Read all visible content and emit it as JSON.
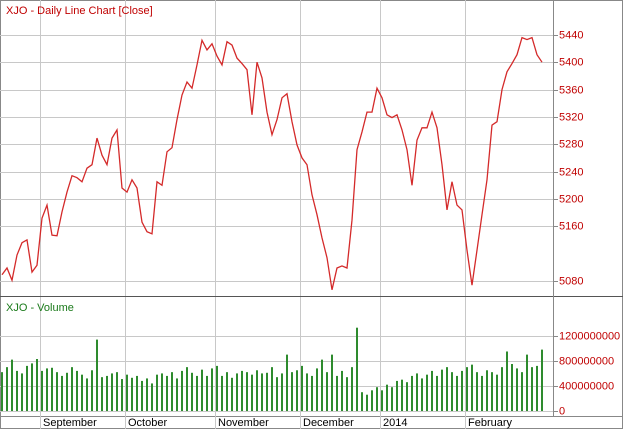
{
  "chart_data": [
    {
      "type": "line",
      "title": "XJO - Daily Line Chart [Close]",
      "color": "#d42a2a",
      "title_color": "#c00000",
      "values": [
        5089,
        5099,
        5081,
        5118,
        5136,
        5140,
        5093,
        5103,
        5172,
        5191,
        5147,
        5146,
        5181,
        5210,
        5234,
        5231,
        5225,
        5245,
        5250,
        5289,
        5264,
        5250,
        5289,
        5301,
        5216,
        5210,
        5228,
        5216,
        5166,
        5152,
        5149,
        5225,
        5220,
        5269,
        5275,
        5316,
        5352,
        5371,
        5362,
        5396,
        5432,
        5418,
        5427,
        5409,
        5396,
        5430,
        5425,
        5406,
        5398,
        5389,
        5323,
        5400,
        5377,
        5327,
        5294,
        5316,
        5348,
        5354,
        5313,
        5279,
        5260,
        5250,
        5206,
        5177,
        5143,
        5114,
        5067,
        5099,
        5102,
        5099,
        5169,
        5272,
        5298,
        5327,
        5327,
        5362,
        5348,
        5323,
        5319,
        5323,
        5301,
        5272,
        5220,
        5286,
        5304,
        5304,
        5327,
        5304,
        5250,
        5184,
        5225,
        5191,
        5184,
        5125,
        5074,
        5125,
        5177,
        5228,
        5308,
        5313,
        5360,
        5386,
        5398,
        5411,
        5436,
        5433,
        5436,
        5411,
        5400
      ],
      "ylim": [
        5058,
        5491
      ],
      "yticks": [
        5080,
        5160,
        5200,
        5240,
        5280,
        5320,
        5360,
        5400,
        5440
      ],
      "grid": true
    },
    {
      "type": "bar",
      "title": "XJO - Volume",
      "color": "#2e8b2e",
      "title_color": "#1a7a1a",
      "categories": [
        null,
        null,
        null,
        null,
        null,
        null,
        null,
        null,
        "September",
        null,
        null,
        null,
        null,
        null,
        null,
        null,
        null,
        null,
        null,
        null,
        null,
        null,
        null,
        null,
        null,
        "October",
        null,
        null,
        null,
        null,
        null,
        null,
        null,
        null,
        null,
        null,
        null,
        null,
        null,
        null,
        null,
        null,
        null,
        "November",
        null,
        null,
        null,
        null,
        null,
        null,
        null,
        null,
        null,
        null,
        null,
        null,
        null,
        null,
        null,
        null,
        "December",
        null,
        null,
        null,
        null,
        null,
        null,
        null,
        null,
        null,
        null,
        null,
        null,
        null,
        null,
        null,
        "2014",
        null,
        null,
        null,
        null,
        null,
        null,
        null,
        null,
        null,
        null,
        null,
        null,
        null,
        null,
        null,
        null,
        "February",
        null,
        null,
        null,
        null,
        null,
        null,
        null,
        null,
        null,
        null,
        null,
        null,
        null,
        null,
        null
      ],
      "values": [
        620000000,
        700000000,
        820000000,
        640000000,
        600000000,
        720000000,
        760000000,
        830000000,
        640000000,
        680000000,
        690000000,
        620000000,
        560000000,
        610000000,
        700000000,
        640000000,
        580000000,
        520000000,
        650000000,
        1140000000,
        540000000,
        560000000,
        600000000,
        620000000,
        510000000,
        580000000,
        530000000,
        560000000,
        480000000,
        520000000,
        440000000,
        580000000,
        600000000,
        560000000,
        620000000,
        520000000,
        640000000,
        700000000,
        610000000,
        560000000,
        660000000,
        560000000,
        680000000,
        720000000,
        560000000,
        620000000,
        530000000,
        600000000,
        640000000,
        620000000,
        580000000,
        650000000,
        600000000,
        610000000,
        700000000,
        540000000,
        600000000,
        900000000,
        620000000,
        650000000,
        720000000,
        600000000,
        560000000,
        680000000,
        820000000,
        620000000,
        900000000,
        560000000,
        640000000,
        540000000,
        700000000,
        1330000000,
        300000000,
        260000000,
        330000000,
        380000000,
        330000000,
        420000000,
        380000000,
        480000000,
        500000000,
        460000000,
        560000000,
        600000000,
        520000000,
        580000000,
        640000000,
        560000000,
        660000000,
        700000000,
        620000000,
        560000000,
        640000000,
        700000000,
        740000000,
        620000000,
        560000000,
        650000000,
        620000000,
        580000000,
        700000000,
        950000000,
        750000000,
        680000000,
        620000000,
        900000000,
        700000000,
        720000000,
        980000000
      ],
      "ylim": [
        -80000000,
        1820000000
      ],
      "yticks": [
        0,
        400000000,
        800000000,
        1200000000
      ],
      "grid": true
    }
  ]
}
